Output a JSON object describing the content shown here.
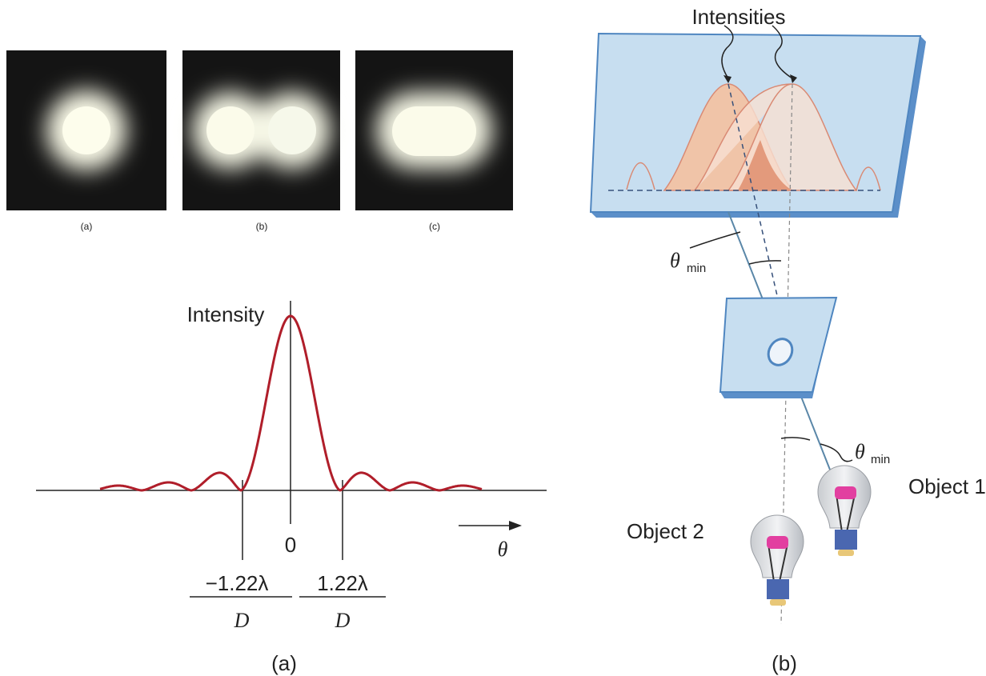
{
  "images": {
    "labels": [
      "(a)",
      "(b)",
      "(c)"
    ]
  },
  "graph": {
    "y_label": "Intensity",
    "zero": "0",
    "left_tick": {
      "numerator": "−1.22λ",
      "denominator": "D"
    },
    "right_tick": {
      "numerator": "1.22λ",
      "denominator": "D"
    },
    "x_label": "θ",
    "caption": "(a)"
  },
  "setup": {
    "title": "Intensities",
    "angle_top": {
      "symbol": "θ",
      "subscript": "min"
    },
    "angle_bottom": {
      "symbol": "θ",
      "subscript": "min"
    },
    "object_1": "Object 1",
    "object_2": "Object 2",
    "caption": "(b)"
  }
}
